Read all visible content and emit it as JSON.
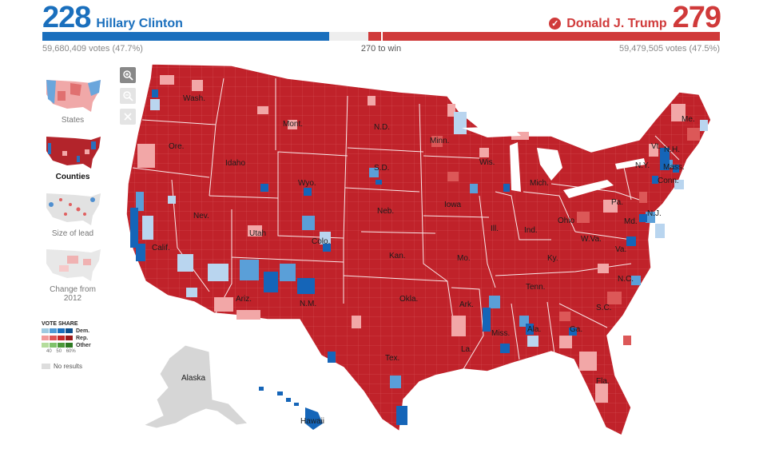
{
  "header": {
    "dem": {
      "electoral_votes": "228",
      "name": "Hillary Clinton",
      "popular_votes": "59,680,409 votes (47.7%)",
      "color": "#1a6fbd"
    },
    "rep": {
      "electoral_votes": "279",
      "name": "Donald J. Trump",
      "popular_votes": "59,479,505 votes (47.5%)",
      "color": "#d03a3a",
      "winner_icon": "check-circle-icon"
    },
    "to_win": "270 to win",
    "total_electoral_votes": 538,
    "win_threshold": 270
  },
  "zoom_controls": [
    {
      "icon": "zoom-in-icon",
      "enabled": true
    },
    {
      "icon": "zoom-out-icon",
      "enabled": false
    },
    {
      "icon": "close-icon",
      "enabled": false
    }
  ],
  "views": [
    {
      "label": "States",
      "active": false
    },
    {
      "label": "Counties",
      "active": true
    },
    {
      "label": "Size of lead",
      "active": false
    },
    {
      "label": "Change from 2012",
      "active": false
    }
  ],
  "legend": {
    "title": "VOTE SHARE",
    "rows": [
      {
        "label": "Dem.",
        "colors": [
          "#c6dbef",
          "#9ecae1",
          "#4f9bd6",
          "#1a6fbd",
          "#0c4f8c"
        ]
      },
      {
        "label": "Rep.",
        "colors": [
          "#fbd0d0",
          "#f29a9a",
          "#e05555",
          "#c62828",
          "#9c1a1a"
        ]
      },
      {
        "label": "Other",
        "colors": [
          "#d9efc9",
          "#b5dd9c",
          "#7fc26a",
          "#4c9a3a",
          "#2e7a23"
        ]
      }
    ],
    "ticks": [
      "40",
      "50",
      "60%"
    ],
    "no_results": "No results"
  },
  "map": {
    "state_labels": [
      "Wash.",
      "Ore.",
      "Calif.",
      "Idaho",
      "Nev.",
      "Mont.",
      "Wyo.",
      "Utah",
      "Ariz.",
      "Colo.",
      "N.M.",
      "N.D.",
      "S.D.",
      "Neb.",
      "Kan.",
      "Okla.",
      "Tex.",
      "Minn.",
      "Iowa",
      "Mo.",
      "Ark.",
      "La.",
      "Wis.",
      "Ill.",
      "Mich.",
      "Ind.",
      "Ohio",
      "Ky.",
      "Tenn.",
      "Miss.",
      "Ala.",
      "Ga.",
      "Fla.",
      "S.C.",
      "N.C.",
      "Va.",
      "W.Va.",
      "Pa.",
      "N.Y.",
      "Md.",
      "N.J.",
      "Conn.",
      "Mass.",
      "N.H.",
      "Vt.",
      "Me.",
      "Alaska",
      "Hawaii"
    ],
    "colors": {
      "rep_dark": "#c0222a",
      "rep_mid": "#e05a5a",
      "rep_light": "#f4b4b4",
      "dem_dark": "#1565b8",
      "dem_mid": "#5a9fd8",
      "dem_light": "#b9d5ef",
      "no_result": "#d6d6d6",
      "border": "#ffffff"
    }
  }
}
